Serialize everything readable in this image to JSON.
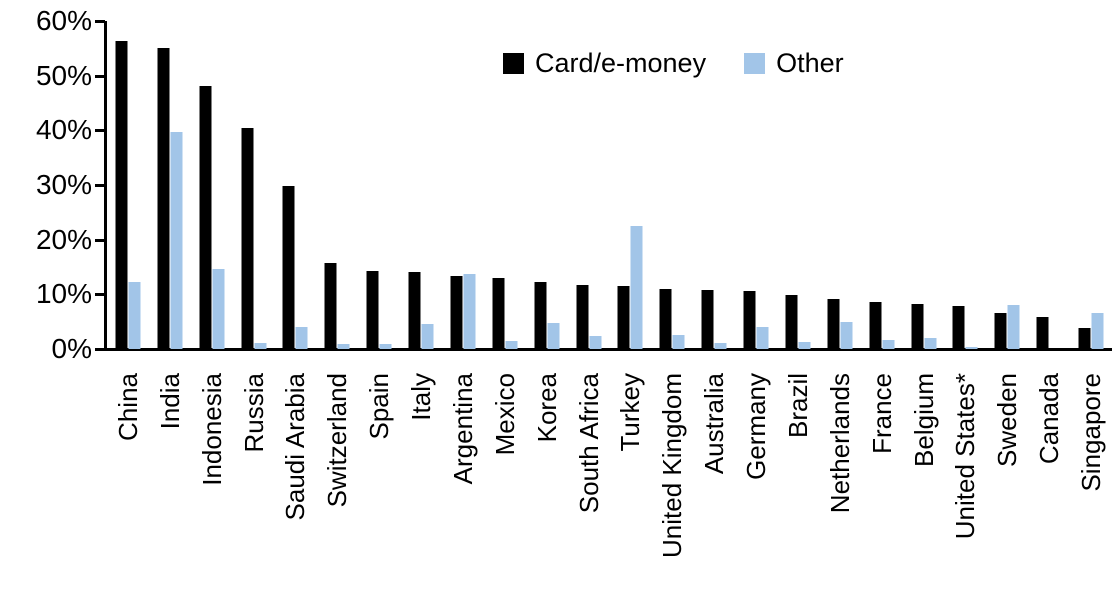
{
  "chart_data": {
    "type": "bar",
    "title": "",
    "xlabel": "",
    "ylabel": "",
    "ylim": [
      0,
      60
    ],
    "ytick_labels": [
      "0%",
      "10%",
      "20%",
      "30%",
      "40%",
      "50%",
      "60%"
    ],
    "grid": false,
    "legend_position": "top-center",
    "colors": {
      "card_e_money": "#000000",
      "other": "#A2C5E8",
      "axis": "#000000",
      "background": "#ffffff"
    },
    "categories": [
      "China",
      "India",
      "Indonesia",
      "Russia",
      "Saudi Arabia",
      "Switzerland",
      "Spain",
      "Italy",
      "Argentina",
      "Mexico",
      "Korea",
      "South Africa",
      "Turkey",
      "United Kingdom",
      "Australia",
      "Germany",
      "Brazil",
      "Netherlands",
      "France",
      "Belgium",
      "United States*",
      "Sweden",
      "Canada",
      "Singapore"
    ],
    "series": [
      {
        "name": "Card/e-money",
        "color": "#000000",
        "values": [
          56.3,
          55.0,
          48.2,
          40.5,
          29.9,
          15.7,
          14.2,
          14.0,
          13.4,
          12.9,
          12.2,
          11.8,
          11.6,
          11.0,
          10.8,
          10.6,
          9.9,
          9.2,
          8.6,
          8.2,
          7.9,
          6.5,
          5.9,
          3.8
        ]
      },
      {
        "name": "Other",
        "color": "#A2C5E8",
        "values": [
          12.3,
          39.7,
          14.6,
          1.1,
          4.0,
          0.9,
          1.0,
          4.6,
          13.8,
          1.4,
          4.7,
          2.4,
          22.5,
          2.5,
          1.1,
          4.0,
          1.2,
          4.9,
          1.6,
          2.1,
          0.3,
          8.1,
          0.0,
          6.6
        ]
      }
    ]
  }
}
